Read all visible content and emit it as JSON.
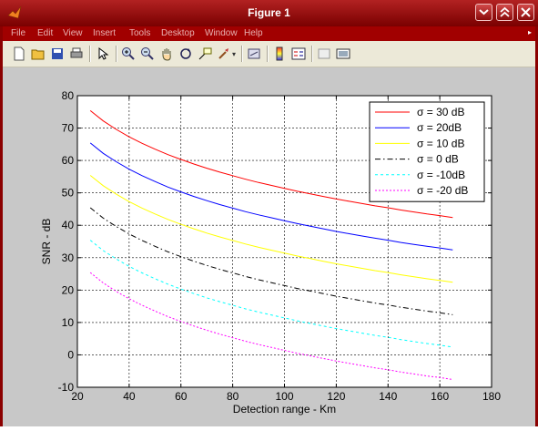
{
  "window": {
    "title": "Figure 1",
    "icon": "matlab-icon"
  },
  "menubar": {
    "items": [
      "File",
      "Edit",
      "View",
      "Insert",
      "Tools",
      "Desktop",
      "Window",
      "Help"
    ]
  },
  "toolbar": {
    "icons": [
      "new-figure-icon",
      "open-icon",
      "save-icon",
      "print-icon",
      "pointer-icon",
      "zoom-in-icon",
      "zoom-out-icon",
      "pan-icon",
      "rotate-icon",
      "data-cursor-icon",
      "brush-icon",
      "link-icon",
      "colorbar-icon",
      "legend-icon",
      "hide-plot-tools-icon",
      "show-plot-tools-icon"
    ]
  },
  "colors": {
    "title_bar": "#b22222",
    "menu_bar": "#a10000",
    "figure_bg": "#c8c8c8",
    "axes_bg": "#ffffff"
  },
  "chart_data": {
    "type": "line",
    "title": "",
    "xlabel": "Detection range - Km",
    "ylabel": "SNR - dB",
    "xlim": [
      20,
      180
    ],
    "ylim": [
      -10,
      80
    ],
    "xticks": [
      20,
      40,
      60,
      80,
      100,
      120,
      140,
      160,
      180
    ],
    "yticks": [
      -10,
      0,
      10,
      20,
      30,
      40,
      50,
      60,
      70,
      80
    ],
    "grid": true,
    "legend_position": "top-right",
    "x": [
      25,
      30,
      35,
      40,
      45,
      50,
      55,
      60,
      65,
      70,
      75,
      80,
      85,
      90,
      95,
      100,
      105,
      110,
      115,
      120,
      125,
      130,
      135,
      140,
      145,
      150,
      155,
      160,
      165
    ],
    "series": [
      {
        "name": "σ = 30 dB",
        "color": "#ff0000",
        "dash": "solid",
        "values": [
          75.4,
          72.2,
          69.6,
          67.3,
          65.3,
          63.5,
          61.8,
          60.3,
          58.9,
          57.6,
          56.4,
          55.3,
          54.2,
          53.2,
          52.3,
          51.4,
          50.5,
          49.7,
          48.9,
          48.1,
          47.4,
          46.7,
          46.0,
          45.4,
          44.7,
          44.1,
          43.5,
          43.0,
          42.4
        ]
      },
      {
        "name": "σ = 20dB",
        "color": "#0000ff",
        "dash": "solid",
        "values": [
          65.4,
          62.2,
          59.6,
          57.3,
          55.3,
          53.5,
          51.8,
          50.3,
          48.9,
          47.6,
          46.4,
          45.3,
          44.2,
          43.2,
          42.3,
          41.4,
          40.5,
          39.7,
          38.9,
          38.1,
          37.4,
          36.7,
          36.0,
          35.4,
          34.7,
          34.1,
          33.5,
          33.0,
          32.4
        ]
      },
      {
        "name": "σ = 10 dB",
        "color": "#ffff00",
        "dash": "solid",
        "values": [
          55.4,
          52.2,
          49.6,
          47.3,
          45.3,
          43.5,
          41.8,
          40.3,
          38.9,
          37.6,
          36.4,
          35.3,
          34.2,
          33.2,
          32.3,
          31.4,
          30.5,
          29.7,
          28.9,
          28.1,
          27.4,
          26.7,
          26.0,
          25.4,
          24.7,
          24.1,
          23.5,
          23.0,
          22.4
        ]
      },
      {
        "name": "σ = 0 dB",
        "color": "#000000",
        "dash": "6,3,1.5,3",
        "values": [
          45.4,
          42.2,
          39.6,
          37.3,
          35.3,
          33.5,
          31.8,
          30.3,
          28.9,
          27.6,
          26.4,
          25.3,
          24.2,
          23.2,
          22.3,
          21.4,
          20.5,
          19.7,
          18.9,
          18.1,
          17.4,
          16.7,
          16.0,
          15.4,
          14.7,
          14.1,
          13.5,
          13.0,
          12.4
        ]
      },
      {
        "name": "σ = -10dB",
        "color": "#00ffff",
        "dash": "3,3",
        "values": [
          35.4,
          32.2,
          29.6,
          27.3,
          25.3,
          23.5,
          21.8,
          20.3,
          18.9,
          17.6,
          16.4,
          15.3,
          14.2,
          13.2,
          12.3,
          11.4,
          10.5,
          9.7,
          8.9,
          8.1,
          7.4,
          6.7,
          6.0,
          5.4,
          4.7,
          4.1,
          3.5,
          3.0,
          2.4
        ]
      },
      {
        "name": "σ = -20 dB",
        "color": "#ff00ff",
        "dash": "2,2",
        "values": [
          25.4,
          22.2,
          19.6,
          17.3,
          15.3,
          13.5,
          11.8,
          10.3,
          8.9,
          7.6,
          6.4,
          5.3,
          4.2,
          3.2,
          2.3,
          1.4,
          0.5,
          -0.3,
          -1.1,
          -1.9,
          -2.6,
          -3.3,
          -4.0,
          -4.6,
          -5.3,
          -5.9,
          -6.5,
          -7.0,
          -7.6
        ]
      }
    ]
  }
}
